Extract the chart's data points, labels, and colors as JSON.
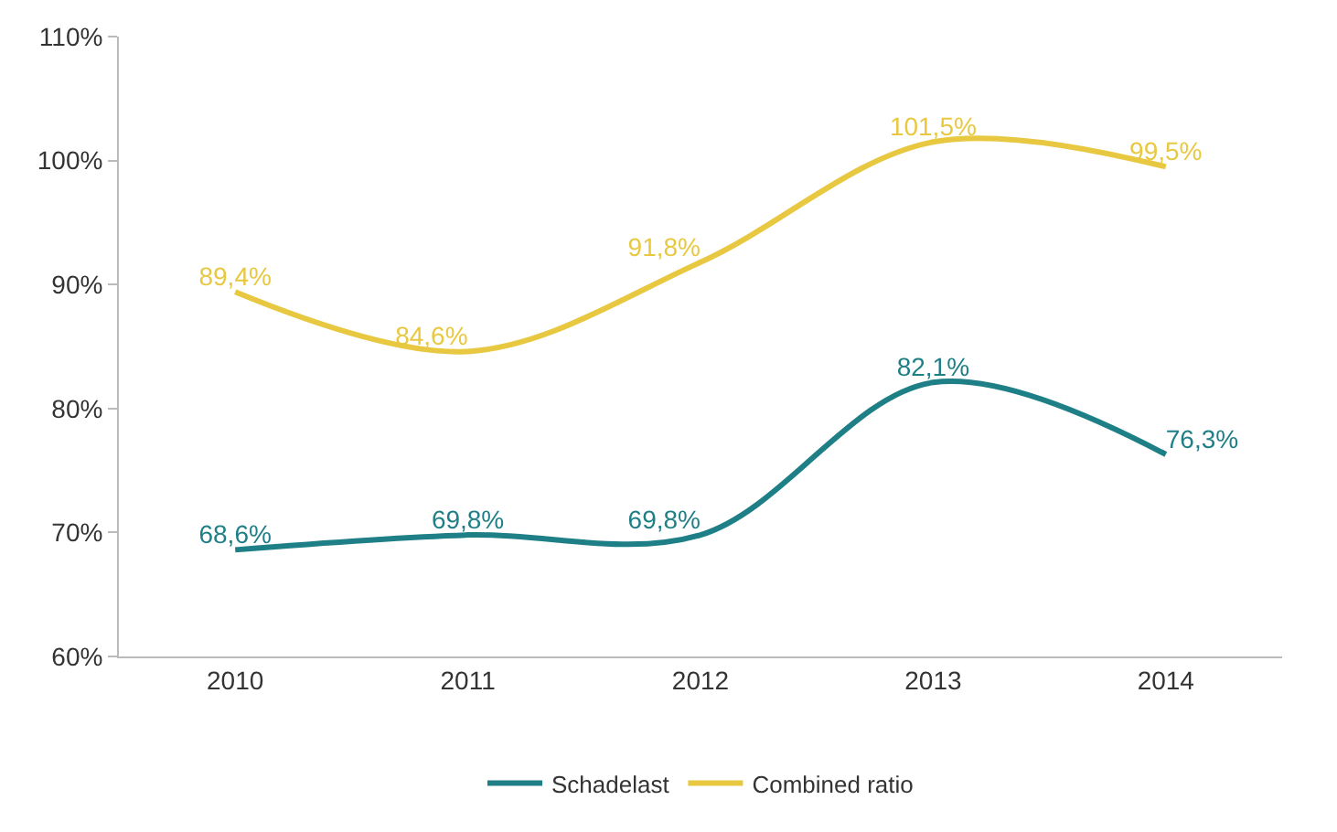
{
  "chart_data": {
    "type": "line",
    "categories": [
      "2010",
      "2011",
      "2012",
      "2013",
      "2014"
    ],
    "series": [
      {
        "name": "Schadelast",
        "color": "#1e7f86",
        "values": [
          68.6,
          69.8,
          69.8,
          82.1,
          76.3
        ],
        "value_labels": [
          "68,6%",
          "69,8%",
          "69,8%",
          "82,1%",
          "76,3%"
        ]
      },
      {
        "name": "Combined ratio",
        "color": "#e8c840",
        "values": [
          89.4,
          84.6,
          91.8,
          101.5,
          99.5
        ],
        "value_labels": [
          "89,4%",
          "84,6%",
          "91,8%",
          "101,5%",
          "99,5%"
        ]
      }
    ],
    "ylim": [
      60,
      110
    ],
    "yticks": [
      {
        "value": 60,
        "label": "60%"
      },
      {
        "value": 70,
        "label": "70%"
      },
      {
        "value": 80,
        "label": "80%"
      },
      {
        "value": 90,
        "label": "90%"
      },
      {
        "value": 100,
        "label": "100%"
      },
      {
        "value": 110,
        "label": "110%"
      }
    ],
    "legend": "bottom",
    "marker": "none",
    "line_style": "solid"
  }
}
